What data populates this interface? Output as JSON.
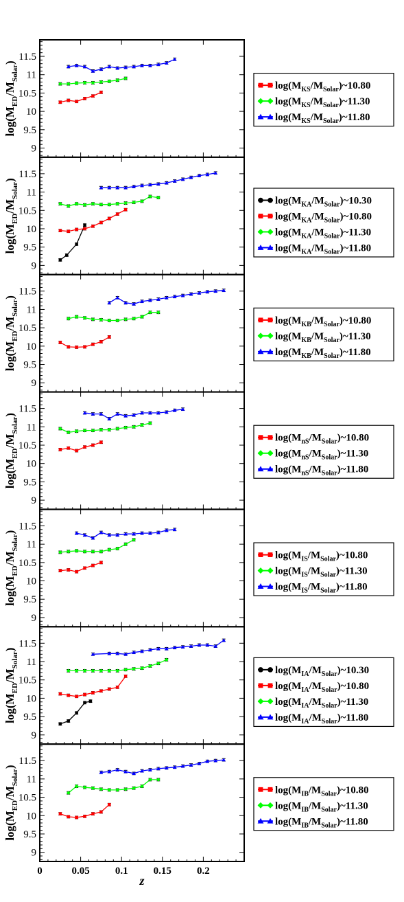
{
  "chart_data": {
    "type": "line",
    "shared_x": {
      "label": "z",
      "range": [
        0,
        0.25
      ],
      "ticks": [
        0,
        0.05,
        0.1,
        0.15,
        0.2
      ],
      "tick_labels": [
        "0",
        "0.05",
        "0.1",
        "0.15",
        "0.2"
      ]
    },
    "shared_y": {
      "label_main": "log(M",
      "label_sub1": "ED",
      "label_mid": "/M",
      "label_sub2": "Solar",
      "label_end": ")",
      "range": [
        8.75,
        11.95
      ],
      "ticks": [
        9,
        9.5,
        10,
        10.5,
        11,
        11.5
      ],
      "tick_labels": [
        "9",
        "9.5",
        "10",
        "10.5",
        "11",
        "11.5"
      ]
    },
    "colors": {
      "10.30": "#000000",
      "10.80": "#ff0000",
      "11.30": "#00ff00",
      "11.80": "#0000ff"
    },
    "panels": [
      {
        "sub": "KS",
        "series": [
          {
            "name": "10.80",
            "marker": "square",
            "x": [
              0.025,
              0.035,
              0.045,
              0.055,
              0.065,
              0.075
            ],
            "y": [
              10.25,
              10.3,
              10.27,
              10.35,
              10.42,
              10.52
            ]
          },
          {
            "name": "11.30",
            "marker": "diamond",
            "x": [
              0.025,
              0.035,
              0.045,
              0.055,
              0.065,
              0.075,
              0.085,
              0.095,
              0.105
            ],
            "y": [
              10.75,
              10.75,
              10.77,
              10.78,
              10.78,
              10.8,
              10.82,
              10.85,
              10.9
            ]
          },
          {
            "name": "11.80",
            "marker": "triangle",
            "x": [
              0.035,
              0.045,
              0.055,
              0.065,
              0.075,
              0.085,
              0.095,
              0.105,
              0.115,
              0.125,
              0.135,
              0.145,
              0.155,
              0.165
            ],
            "y": [
              11.22,
              11.25,
              11.22,
              11.1,
              11.15,
              11.22,
              11.18,
              11.2,
              11.22,
              11.25,
              11.25,
              11.28,
              11.32,
              11.42
            ]
          }
        ]
      },
      {
        "sub": "KA",
        "series": [
          {
            "name": "10.30",
            "marker": "circle",
            "x": [
              0.025,
              0.033,
              0.045,
              0.055
            ],
            "y": [
              9.15,
              9.28,
              9.58,
              10.1
            ]
          },
          {
            "name": "10.80",
            "marker": "square",
            "x": [
              0.025,
              0.035,
              0.045,
              0.055,
              0.065,
              0.075,
              0.085,
              0.095,
              0.105
            ],
            "y": [
              9.95,
              9.93,
              9.98,
              10.0,
              10.07,
              10.17,
              10.28,
              10.4,
              10.52
            ]
          },
          {
            "name": "11.30",
            "marker": "diamond",
            "x": [
              0.025,
              0.035,
              0.045,
              0.055,
              0.065,
              0.075,
              0.085,
              0.095,
              0.105,
              0.115,
              0.125,
              0.135,
              0.145
            ],
            "y": [
              10.68,
              10.62,
              10.68,
              10.65,
              10.68,
              10.66,
              10.66,
              10.68,
              10.7,
              10.72,
              10.75,
              10.88,
              10.85
            ]
          },
          {
            "name": "11.80",
            "marker": "triangle",
            "x": [
              0.075,
              0.085,
              0.095,
              0.105,
              0.115,
              0.125,
              0.135,
              0.145,
              0.155,
              0.165,
              0.175,
              0.185,
              0.195,
              0.205,
              0.215
            ],
            "y": [
              11.12,
              11.12,
              11.12,
              11.12,
              11.15,
              11.18,
              11.2,
              11.22,
              11.25,
              11.3,
              11.35,
              11.4,
              11.45,
              11.48,
              11.52
            ]
          }
        ]
      },
      {
        "sub": "KB",
        "series": [
          {
            "name": "10.80",
            "marker": "square",
            "x": [
              0.025,
              0.035,
              0.045,
              0.055,
              0.065,
              0.075,
              0.085
            ],
            "y": [
              10.1,
              9.98,
              9.97,
              9.98,
              10.05,
              10.12,
              10.25
            ]
          },
          {
            "name": "11.30",
            "marker": "diamond",
            "x": [
              0.035,
              0.045,
              0.055,
              0.065,
              0.075,
              0.085,
              0.095,
              0.105,
              0.115,
              0.125,
              0.135,
              0.145
            ],
            "y": [
              10.75,
              10.8,
              10.77,
              10.73,
              10.72,
              10.7,
              10.7,
              10.73,
              10.75,
              10.8,
              10.92,
              10.92
            ]
          },
          {
            "name": "11.80",
            "marker": "triangle",
            "x": [
              0.085,
              0.095,
              0.105,
              0.115,
              0.125,
              0.135,
              0.145,
              0.155,
              0.165,
              0.175,
              0.185,
              0.195,
              0.205,
              0.215,
              0.225
            ],
            "y": [
              11.18,
              11.32,
              11.18,
              11.15,
              11.22,
              11.25,
              11.28,
              11.32,
              11.35,
              11.38,
              11.42,
              11.45,
              11.48,
              11.5,
              11.52
            ]
          }
        ]
      },
      {
        "sub": "nS",
        "series": [
          {
            "name": "10.80",
            "marker": "square",
            "x": [
              0.025,
              0.035,
              0.045,
              0.055,
              0.065,
              0.075
            ],
            "y": [
              10.38,
              10.42,
              10.35,
              10.45,
              10.5,
              10.58
            ]
          },
          {
            "name": "11.30",
            "marker": "diamond",
            "x": [
              0.025,
              0.035,
              0.045,
              0.055,
              0.065,
              0.075,
              0.085,
              0.095,
              0.105,
              0.115,
              0.125,
              0.135
            ],
            "y": [
              10.95,
              10.85,
              10.88,
              10.9,
              10.9,
              10.92,
              10.92,
              10.95,
              10.98,
              11.0,
              11.05,
              11.1
            ]
          },
          {
            "name": "11.80",
            "marker": "triangle",
            "x": [
              0.055,
              0.065,
              0.075,
              0.085,
              0.095,
              0.105,
              0.115,
              0.125,
              0.135,
              0.145,
              0.155,
              0.165,
              0.175
            ],
            "y": [
              11.38,
              11.35,
              11.35,
              11.22,
              11.35,
              11.3,
              11.32,
              11.38,
              11.38,
              11.38,
              11.4,
              11.45,
              11.48
            ]
          }
        ]
      },
      {
        "sub": "IS",
        "series": [
          {
            "name": "10.80",
            "marker": "square",
            "x": [
              0.025,
              0.035,
              0.045,
              0.055,
              0.065,
              0.075
            ],
            "y": [
              10.28,
              10.3,
              10.25,
              10.35,
              10.42,
              10.5
            ]
          },
          {
            "name": "11.30",
            "marker": "diamond",
            "x": [
              0.025,
              0.035,
              0.045,
              0.055,
              0.065,
              0.075,
              0.085,
              0.095,
              0.105,
              0.115
            ],
            "y": [
              10.78,
              10.8,
              10.82,
              10.8,
              10.8,
              10.8,
              10.85,
              10.88,
              11.0,
              11.12
            ]
          },
          {
            "name": "11.80",
            "marker": "triangle",
            "x": [
              0.045,
              0.055,
              0.065,
              0.075,
              0.085,
              0.095,
              0.105,
              0.115,
              0.125,
              0.135,
              0.145,
              0.155,
              0.165
            ],
            "y": [
              11.3,
              11.25,
              11.17,
              11.32,
              11.25,
              11.25,
              11.28,
              11.28,
              11.3,
              11.3,
              11.32,
              11.38,
              11.4
            ]
          }
        ]
      },
      {
        "sub": "IA",
        "series": [
          {
            "name": "10.30",
            "marker": "circle",
            "x": [
              0.025,
              0.035,
              0.045,
              0.055,
              0.062
            ],
            "y": [
              9.3,
              9.38,
              9.6,
              9.88,
              9.92
            ]
          },
          {
            "name": "10.80",
            "marker": "square",
            "x": [
              0.025,
              0.035,
              0.045,
              0.055,
              0.065,
              0.075,
              0.085,
              0.095,
              0.105
            ],
            "y": [
              10.12,
              10.08,
              10.05,
              10.1,
              10.15,
              10.2,
              10.25,
              10.3,
              10.6
            ]
          },
          {
            "name": "11.30",
            "marker": "diamond",
            "x": [
              0.035,
              0.045,
              0.055,
              0.065,
              0.075,
              0.085,
              0.095,
              0.105,
              0.115,
              0.125,
              0.135,
              0.145,
              0.155
            ],
            "y": [
              10.75,
              10.75,
              10.75,
              10.75,
              10.75,
              10.75,
              10.75,
              10.78,
              10.8,
              10.82,
              10.88,
              10.95,
              11.05
            ]
          },
          {
            "name": "11.80",
            "marker": "triangle",
            "x": [
              0.065,
              0.085,
              0.095,
              0.105,
              0.115,
              0.125,
              0.135,
              0.145,
              0.155,
              0.165,
              0.175,
              0.185,
              0.195,
              0.205,
              0.215,
              0.225
            ],
            "y": [
              11.2,
              11.22,
              11.22,
              11.2,
              11.25,
              11.28,
              11.32,
              11.35,
              11.35,
              11.38,
              11.4,
              11.42,
              11.45,
              11.45,
              11.42,
              11.58
            ]
          }
        ]
      },
      {
        "sub": "IB",
        "series": [
          {
            "name": "10.80",
            "marker": "square",
            "x": [
              0.025,
              0.035,
              0.045,
              0.055,
              0.065,
              0.075,
              0.085
            ],
            "y": [
              10.05,
              9.97,
              9.95,
              9.98,
              10.05,
              10.1,
              10.3
            ]
          },
          {
            "name": "11.30",
            "marker": "diamond",
            "x": [
              0.035,
              0.045,
              0.055,
              0.065,
              0.075,
              0.085,
              0.095,
              0.105,
              0.115,
              0.125,
              0.135,
              0.145
            ],
            "y": [
              10.62,
              10.8,
              10.77,
              10.75,
              10.72,
              10.7,
              10.7,
              10.72,
              10.75,
              10.8,
              10.98,
              10.98
            ]
          },
          {
            "name": "11.80",
            "marker": "triangle",
            "x": [
              0.075,
              0.085,
              0.095,
              0.105,
              0.115,
              0.125,
              0.135,
              0.145,
              0.155,
              0.165,
              0.175,
              0.185,
              0.195,
              0.205,
              0.215,
              0.225
            ],
            "y": [
              11.18,
              11.2,
              11.25,
              11.2,
              11.15,
              11.22,
              11.25,
              11.28,
              11.3,
              11.32,
              11.35,
              11.38,
              11.42,
              11.48,
              11.5,
              11.52
            ]
          }
        ]
      }
    ],
    "legends": [
      {
        "sub": "KS",
        "entries": [
          "10.80",
          "11.30",
          "11.80"
        ]
      },
      {
        "sub": "KA",
        "entries": [
          "10.30",
          "10.80",
          "11.30",
          "11.80"
        ]
      },
      {
        "sub": "KB",
        "entries": [
          "10.80",
          "11.30",
          "11.80"
        ]
      },
      {
        "sub": "nS",
        "entries": [
          "10.80",
          "11.30",
          "11.80"
        ]
      },
      {
        "sub": "IS",
        "entries": [
          "10.80",
          "11.30",
          "11.80"
        ]
      },
      {
        "sub": "IA",
        "entries": [
          "10.30",
          "10.80",
          "11.30",
          "11.80"
        ]
      },
      {
        "sub": "IB",
        "entries": [
          "10.80",
          "11.30",
          "11.80"
        ]
      }
    ],
    "legend_text": {
      "prefix": "log(M",
      "mid": "/M",
      "sub2": "Solar",
      "suffix": ")~"
    },
    "grid": false,
    "legend_placement": "right of each panel"
  }
}
